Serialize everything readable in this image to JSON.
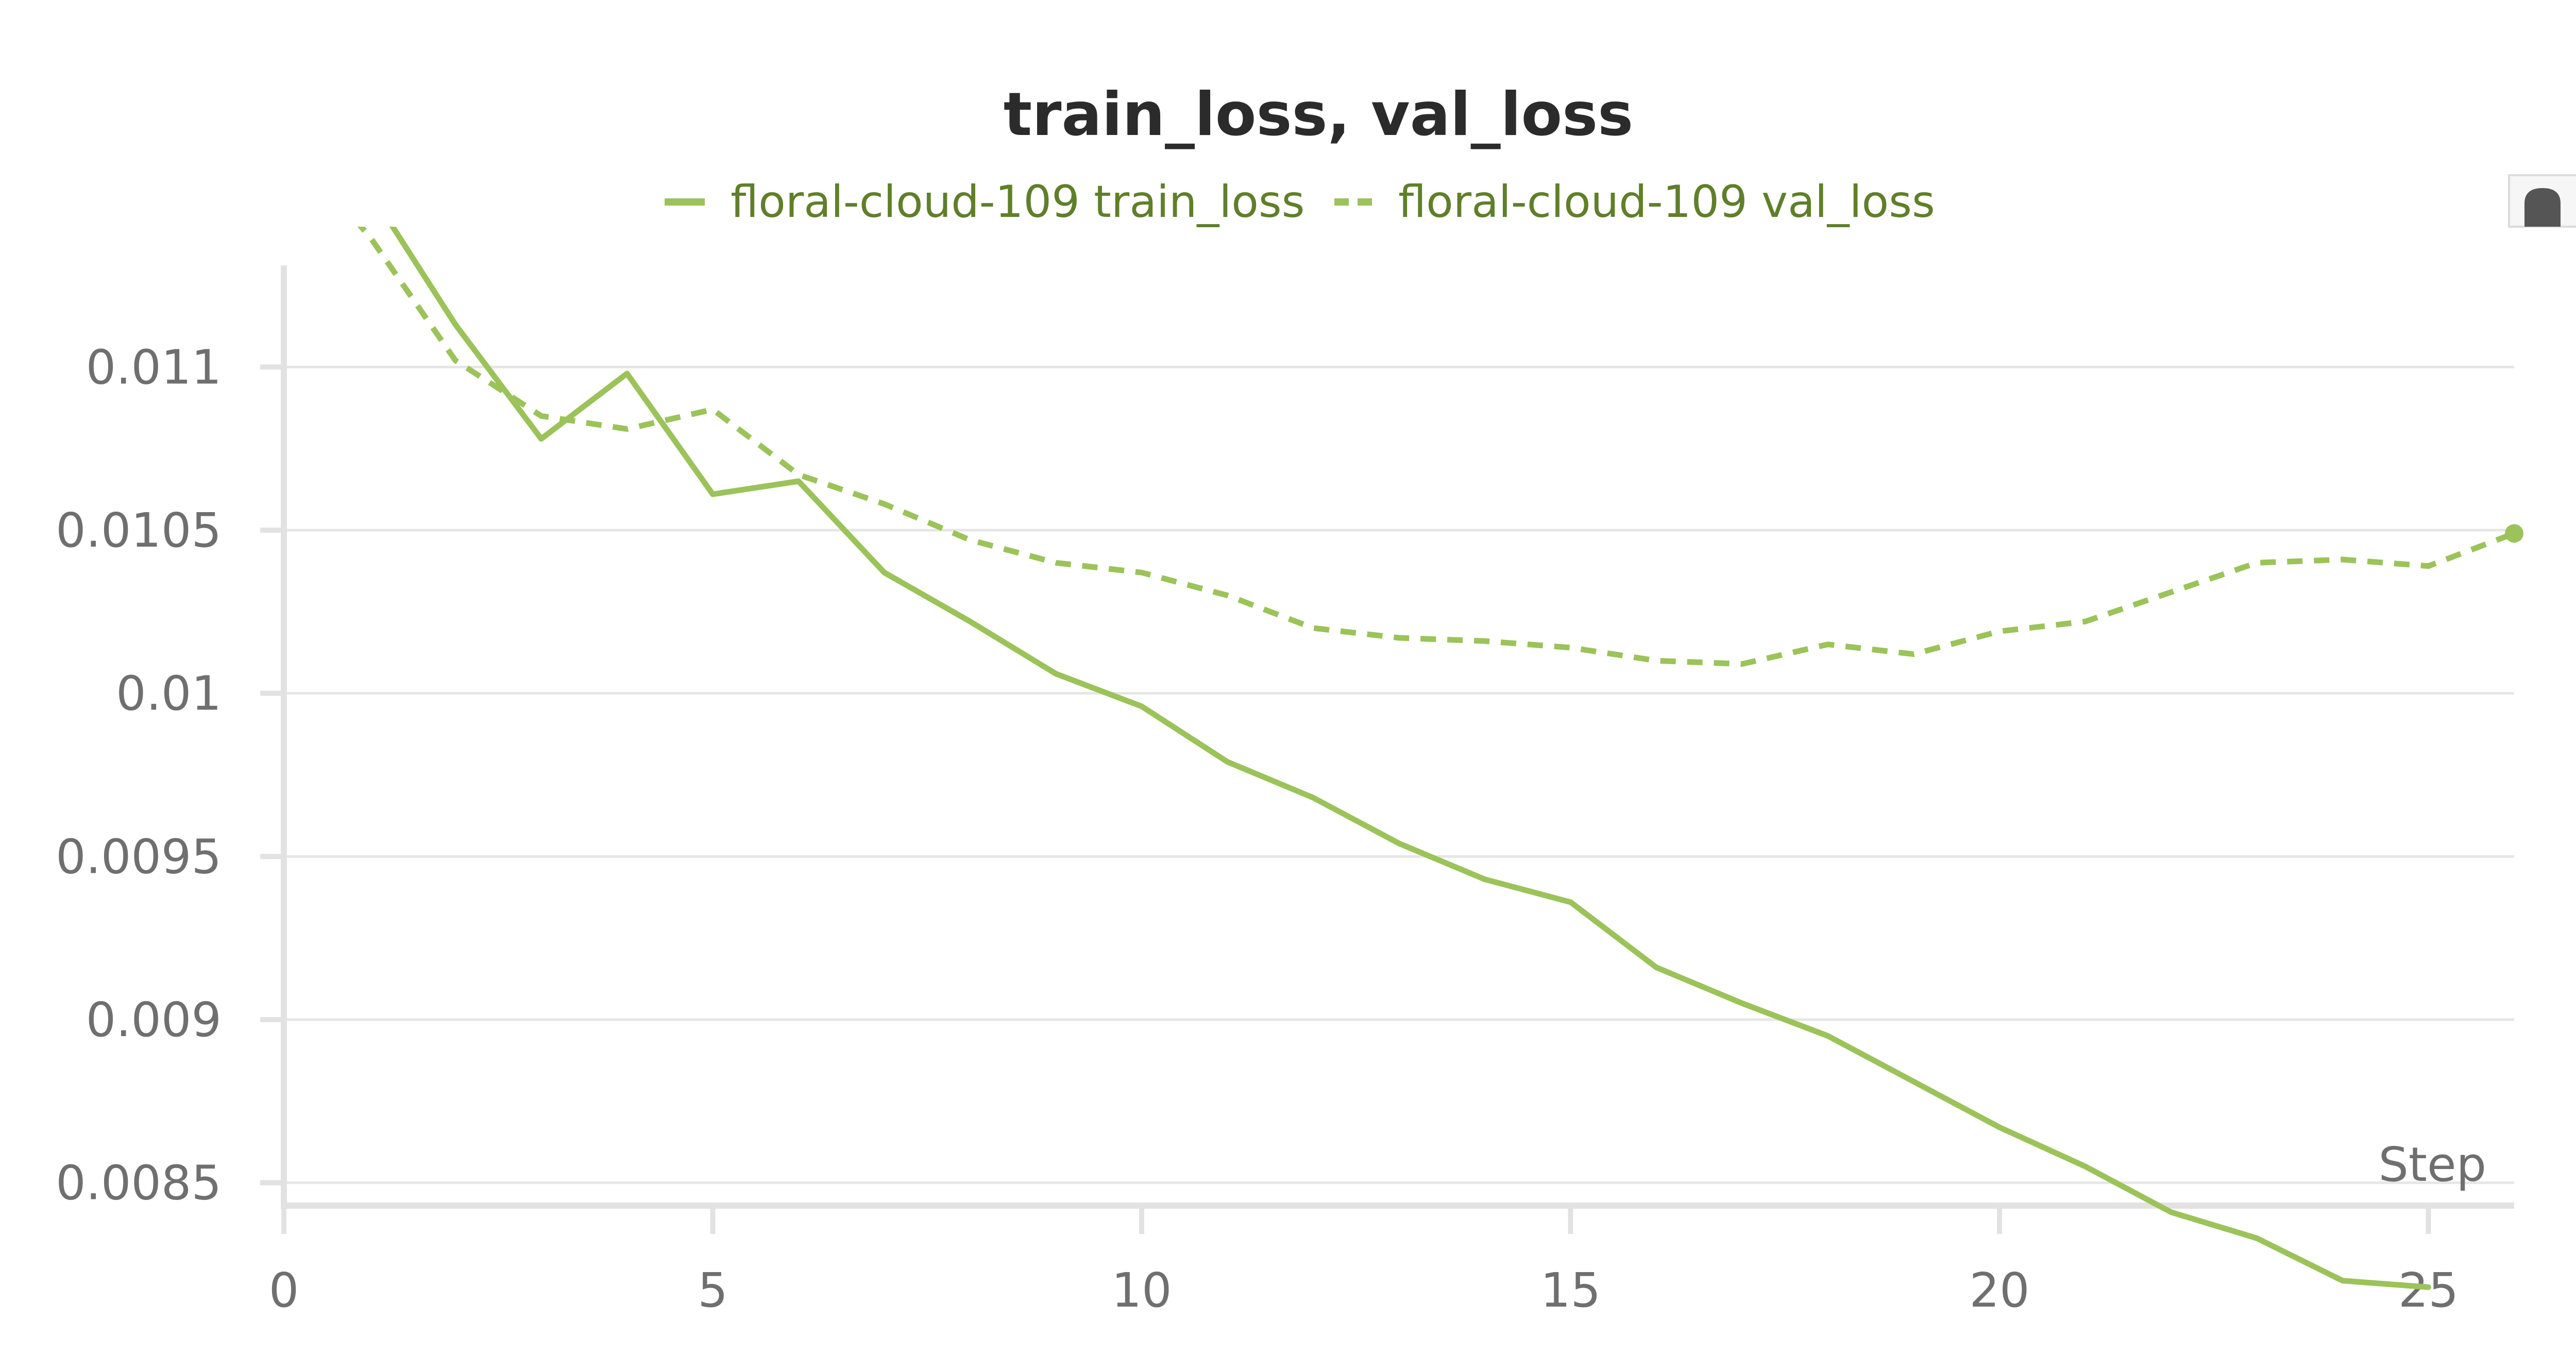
{
  "colors": {
    "series": "#9bc35a",
    "legend_text": "#5f7f2a"
  },
  "chart_data": {
    "type": "line",
    "title": "train_loss, val_loss",
    "xlabel": "Step",
    "ylabel": "",
    "xlim": [
      0,
      26
    ],
    "ylim": [
      0.00843,
      0.01143
    ],
    "x_ticks": [
      0,
      5,
      10,
      15,
      20,
      25
    ],
    "y_ticks": [
      0.0085,
      0.009,
      0.0095,
      0.01,
      0.0105,
      0.011
    ],
    "y_tick_labels": [
      "0.0085",
      "0.009",
      "0.0095",
      "0.01",
      "0.0105",
      "0.011"
    ],
    "grid": true,
    "legend_position": "top",
    "series": [
      {
        "name": "floral-cloud-109 train_loss",
        "style": "solid",
        "x": [
          0,
          1,
          2,
          3,
          4,
          5,
          6,
          7,
          8,
          9,
          10,
          11,
          12,
          13,
          14,
          15,
          16,
          17,
          18,
          19,
          20,
          21,
          22,
          23,
          24,
          25
        ],
        "y": [
          0.012,
          0.01154,
          0.01113,
          0.01078,
          0.01098,
          0.01061,
          0.01065,
          0.01037,
          0.01022,
          0.01006,
          0.00996,
          0.00979,
          0.00968,
          0.00954,
          0.00943,
          0.00936,
          0.00916,
          0.00905,
          0.00895,
          0.00881,
          0.00867,
          0.00855,
          0.00841,
          0.00833,
          0.0082,
          0.00818
        ]
      },
      {
        "name": "floral-cloud-109 val_loss",
        "style": "dashed",
        "x": [
          0,
          1,
          2,
          3,
          4,
          5,
          6,
          7,
          8,
          9,
          10,
          11,
          12,
          13,
          14,
          15,
          16,
          17,
          18,
          19,
          20,
          21,
          22,
          23,
          24,
          25,
          26
        ],
        "y": [
          0.0117,
          0.0114,
          0.01102,
          0.01085,
          0.01081,
          0.01087,
          0.01067,
          0.01058,
          0.01047,
          0.0104,
          0.01037,
          0.0103,
          0.0102,
          0.01017,
          0.01016,
          0.01014,
          0.0101,
          0.01009,
          0.01015,
          0.01012,
          0.01019,
          0.01022,
          0.01031,
          0.0104,
          0.01041,
          0.01039,
          0.01049
        ]
      }
    ]
  }
}
